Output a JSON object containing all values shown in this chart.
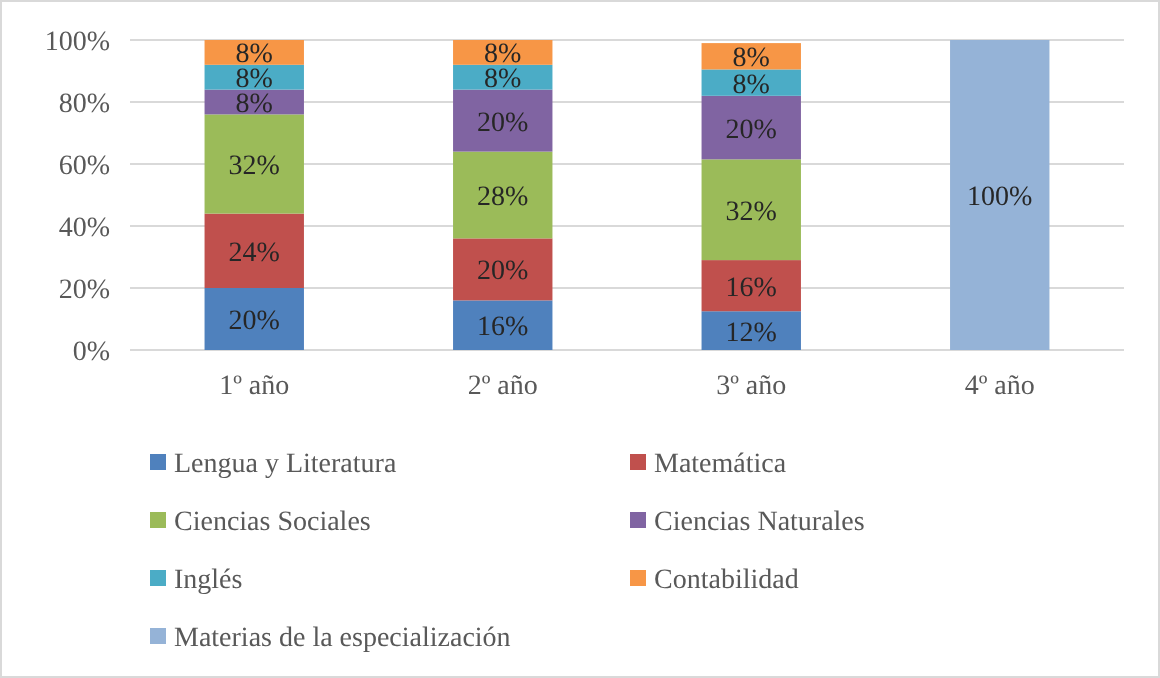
{
  "chart_data": {
    "type": "bar",
    "stacked": true,
    "categories": [
      "1º año",
      "2º año",
      "3º año",
      "4º año"
    ],
    "series": [
      {
        "name": "Lengua y Literatura",
        "color": "#4f81bd",
        "values": [
          20,
          16,
          12.5,
          null
        ],
        "value_labels": [
          "20%",
          "16%",
          "12%",
          null
        ]
      },
      {
        "name": "Matemática",
        "color": "#c0504d",
        "values": [
          24,
          20,
          16.5,
          null
        ],
        "value_labels": [
          "24%",
          "20%",
          "16%",
          null
        ]
      },
      {
        "name": "Ciencias Sociales",
        "color": "#9bbb59",
        "values": [
          32,
          28,
          32.5,
          null
        ],
        "value_labels": [
          "32%",
          "28%",
          "32%",
          null
        ]
      },
      {
        "name": "Ciencias Naturales",
        "color": "#8064a2",
        "values": [
          8,
          20,
          20.5,
          null
        ],
        "value_labels": [
          "8%",
          "20%",
          "20%",
          null
        ]
      },
      {
        "name": "Inglés",
        "color": "#4bacc6",
        "values": [
          8,
          8,
          8.5,
          null
        ],
        "value_labels": [
          "8%",
          "8%",
          "8%",
          null
        ]
      },
      {
        "name": "Contabilidad",
        "color": "#f79646",
        "values": [
          8,
          8,
          8.5,
          null
        ],
        "value_labels": [
          "8%",
          "8%",
          "8%",
          null
        ]
      },
      {
        "name": "Materias de la especialización",
        "color": "#95b3d7",
        "values": [
          null,
          null,
          null,
          100
        ],
        "value_labels": [
          null,
          null,
          null,
          "100%"
        ]
      }
    ],
    "ylim": [
      0,
      100
    ],
    "yticks": [
      {
        "value": 0,
        "label": "0%"
      },
      {
        "value": 20,
        "label": "20%"
      },
      {
        "value": 40,
        "label": "40%"
      },
      {
        "value": 60,
        "label": "60%"
      },
      {
        "value": 80,
        "label": "80%"
      },
      {
        "value": 100,
        "label": "100%"
      }
    ],
    "grid": "y",
    "legend": "bottom"
  }
}
